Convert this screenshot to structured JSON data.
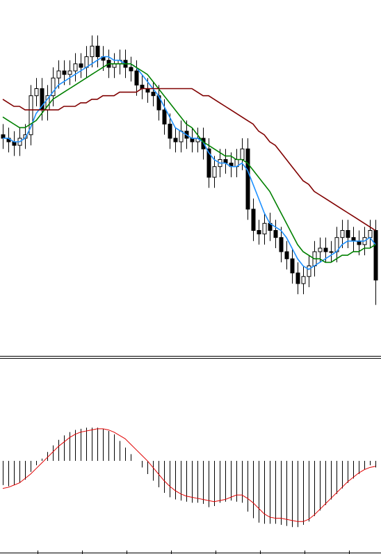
{
  "chart_data": [
    {
      "type": "candlestick",
      "ylim": [
        0,
        100
      ],
      "up_color": "#ffffff",
      "down_color": "#000000",
      "edge_color": "#000000",
      "open": [
        62,
        61,
        60,
        59,
        61,
        62,
        73,
        75,
        69,
        73,
        78,
        80,
        79,
        80,
        82,
        81,
        84,
        87,
        84,
        83,
        81,
        82,
        83,
        81,
        80,
        76,
        75,
        74,
        73,
        69,
        65,
        61,
        60,
        63,
        61,
        60,
        61,
        58,
        50,
        53,
        55,
        54,
        53,
        55,
        58,
        41,
        35,
        34,
        37,
        35,
        33,
        29,
        27,
        23,
        20,
        22,
        25,
        29,
        30,
        29,
        29,
        33,
        35,
        33,
        32,
        31,
        33,
        35
      ],
      "high": [
        65,
        64,
        63,
        64,
        65,
        76,
        78,
        78,
        76,
        81,
        83,
        83,
        83,
        85,
        85,
        87,
        90,
        90,
        87,
        86,
        85,
        86,
        86,
        84,
        83,
        79,
        78,
        77,
        76,
        72,
        68,
        64,
        66,
        66,
        64,
        64,
        64,
        61,
        56,
        58,
        58,
        57,
        58,
        61,
        61,
        44,
        38,
        40,
        40,
        38,
        36,
        32,
        30,
        26,
        25,
        28,
        32,
        33,
        33,
        32,
        36,
        38,
        38,
        36,
        35,
        36,
        38,
        38
      ],
      "low": [
        58,
        57,
        56,
        56,
        58,
        59,
        70,
        66,
        66,
        70,
        75,
        76,
        76,
        77,
        78,
        78,
        81,
        81,
        80,
        78,
        78,
        79,
        78,
        77,
        73,
        72,
        71,
        70,
        66,
        62,
        58,
        57,
        57,
        58,
        57,
        57,
        55,
        47,
        47,
        50,
        51,
        50,
        50,
        52,
        38,
        32,
        31,
        31,
        32,
        30,
        26,
        24,
        20,
        17,
        17,
        19,
        22,
        26,
        26,
        26,
        26,
        30,
        30,
        29,
        28,
        28,
        30,
        14
      ],
      "close": [
        61,
        60,
        59,
        61,
        62,
        73,
        75,
        69,
        73,
        78,
        80,
        79,
        80,
        82,
        81,
        84,
        87,
        84,
        83,
        81,
        82,
        83,
        81,
        80,
        76,
        75,
        74,
        73,
        69,
        65,
        61,
        60,
        63,
        61,
        60,
        61,
        58,
        50,
        53,
        55,
        54,
        53,
        55,
        58,
        41,
        35,
        34,
        37,
        35,
        33,
        29,
        27,
        23,
        20,
        22,
        25,
        29,
        30,
        29,
        29,
        33,
        35,
        33,
        32,
        31,
        33,
        35,
        21
      ],
      "series": [
        {
          "color": "#1e90ff",
          "values": [
            61,
            61,
            60,
            60,
            61,
            64,
            68,
            70,
            72,
            74,
            76,
            77,
            78,
            79,
            80,
            81,
            82,
            83,
            84,
            84,
            83,
            83,
            82,
            82,
            81,
            79,
            77,
            75,
            73,
            70,
            67,
            64,
            63,
            62,
            61,
            61,
            60,
            57,
            55,
            54,
            54,
            53,
            53,
            54,
            52,
            48,
            44,
            40,
            37,
            36,
            35,
            33,
            30,
            27,
            25,
            24,
            25,
            26,
            27,
            28,
            29,
            31,
            32,
            32,
            32,
            32,
            33,
            31
          ]
        },
        {
          "color": "#008000",
          "values": [
            67,
            66,
            65,
            64,
            64,
            65,
            66,
            68,
            70,
            72,
            73,
            74,
            75,
            76,
            77,
            78,
            79,
            80,
            81,
            82,
            82,
            82,
            82,
            82,
            81,
            80,
            79,
            77,
            75,
            73,
            71,
            69,
            67,
            65,
            64,
            62,
            60,
            59,
            58,
            57,
            56,
            56,
            55,
            55,
            54,
            52,
            50,
            48,
            46,
            43,
            40,
            37,
            34,
            31,
            29,
            28,
            27,
            27,
            26,
            26,
            27,
            28,
            28,
            29,
            29,
            30,
            30,
            31
          ]
        },
        {
          "color": "#800000",
          "values": [
            72,
            71,
            70,
            70,
            69,
            69,
            69,
            69,
            69,
            69,
            69,
            70,
            70,
            70,
            71,
            71,
            72,
            72,
            73,
            73,
            73,
            74,
            74,
            74,
            74,
            75,
            75,
            75,
            75,
            75,
            75,
            75,
            75,
            75,
            75,
            74,
            73,
            73,
            72,
            71,
            70,
            69,
            68,
            67,
            66,
            65,
            63,
            62,
            60,
            59,
            57,
            55,
            53,
            51,
            49,
            48,
            46,
            45,
            44,
            43,
            42,
            41,
            40,
            39,
            38,
            37,
            36,
            35
          ]
        }
      ]
    },
    {
      "type": "macd",
      "ylim": [
        -80,
        90
      ],
      "histogram_color": "#000000",
      "values": [
        -22,
        -23,
        -22,
        -20,
        -17,
        -10,
        -4,
        2,
        8,
        14,
        19,
        23,
        26,
        28,
        29,
        30,
        30,
        30,
        29,
        27,
        24,
        18,
        12,
        6,
        0,
        -6,
        -12,
        -18,
        -24,
        -29,
        -33,
        -35,
        -36,
        -37,
        -38,
        -38,
        -39,
        -42,
        -41,
        -38,
        -37,
        -36,
        -37,
        -38,
        -46,
        -52,
        -56,
        -57,
        -57,
        -57,
        -58,
        -59,
        -60,
        -60,
        -58,
        -55,
        -50,
        -45,
        -40,
        -35,
        -30,
        -25,
        -20,
        -16,
        -12,
        -8,
        -4,
        -6
      ],
      "signal": {
        "color": "#e00000",
        "values": [
          -25,
          -24,
          -22,
          -20,
          -16,
          -12,
          -7,
          -2,
          3,
          8,
          13,
          17,
          21,
          24,
          26,
          27,
          28,
          29,
          29,
          28,
          26,
          23,
          20,
          15,
          10,
          5,
          0,
          -6,
          -12,
          -18,
          -23,
          -27,
          -30,
          -32,
          -33,
          -34,
          -35,
          -36,
          -37,
          -36,
          -35,
          -33,
          -31,
          -31,
          -34,
          -38,
          -43,
          -48,
          -51,
          -52,
          -52,
          -53,
          -54,
          -55,
          -55,
          -53,
          -49,
          -44,
          -39,
          -34,
          -29,
          -24,
          -19,
          -15,
          -11,
          -8,
          -6,
          -5
        ]
      }
    }
  ]
}
